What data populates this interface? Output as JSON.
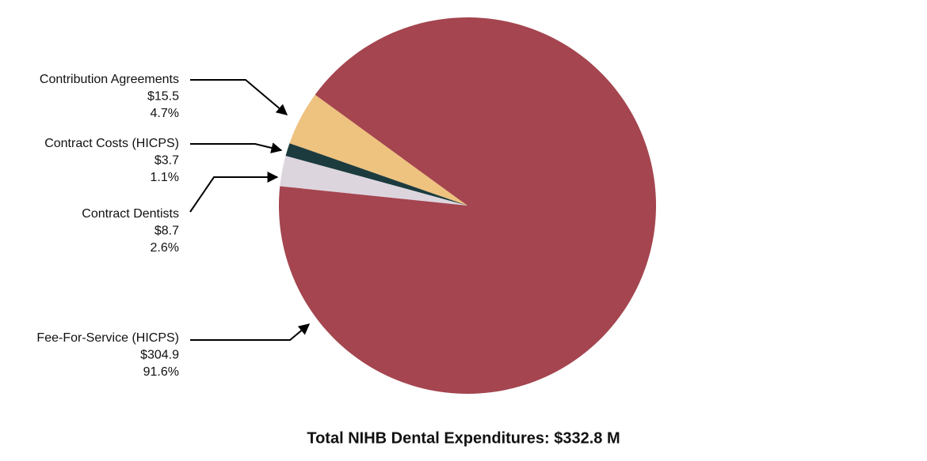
{
  "chart_data": {
    "type": "pie",
    "title": "Total NIHB Dental Expenditures: $332.8 M",
    "categories": [
      "Contribution Agreements",
      "Contract Costs (HICPS)",
      "Contract Dentists",
      "Fee-For-Service (HICPS)"
    ],
    "values": [
      15.5,
      3.7,
      8.7,
      304.9
    ],
    "value_labels": [
      "$15.5",
      "$3.7",
      "$8.7",
      "$304.9"
    ],
    "percents": [
      4.7,
      1.1,
      2.6,
      91.6
    ],
    "percent_labels": [
      "4.7%",
      "1.1%",
      "2.6%",
      "91.6%"
    ],
    "colors": [
      "#eec27f",
      "#1c3b3e",
      "#ddd5de",
      "#a4454f"
    ]
  }
}
